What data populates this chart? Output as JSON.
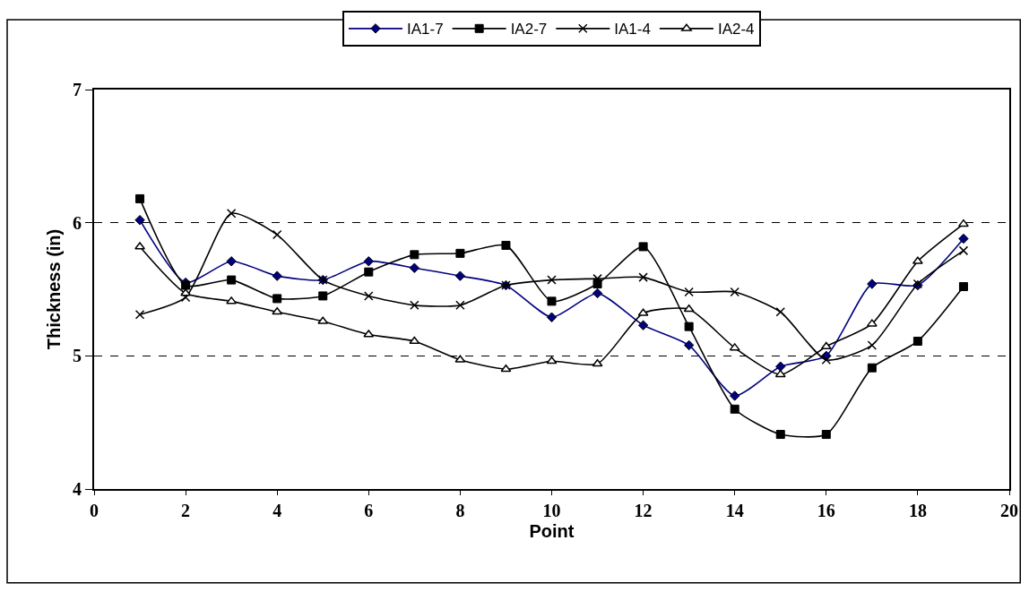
{
  "chart_data": {
    "type": "line",
    "xlabel": "Point",
    "ylabel": "Thickness (in)",
    "x": [
      1,
      2,
      3,
      4,
      5,
      6,
      7,
      8,
      9,
      10,
      11,
      12,
      13,
      14,
      15,
      16,
      17,
      18,
      19
    ],
    "series": [
      {
        "name": "IA1-7",
        "color": "#000080",
        "marker": "diamond",
        "values": [
          6.02,
          5.55,
          5.71,
          5.6,
          5.57,
          5.71,
          5.66,
          5.6,
          5.53,
          5.29,
          5.47,
          5.23,
          5.08,
          4.7,
          4.92,
          5.0,
          5.54,
          5.53,
          5.88
        ]
      },
      {
        "name": "IA2-7",
        "color": "#000000",
        "marker": "square",
        "values": [
          6.18,
          5.53,
          5.57,
          5.43,
          5.45,
          5.63,
          5.76,
          5.77,
          5.83,
          5.41,
          5.54,
          5.82,
          5.22,
          4.6,
          4.41,
          4.41,
          4.91,
          5.11,
          5.52
        ]
      },
      {
        "name": "IA1-4",
        "color": "#000000",
        "marker": "cross",
        "values": [
          5.31,
          5.44,
          6.07,
          5.91,
          5.57,
          5.45,
          5.38,
          5.38,
          5.53,
          5.57,
          5.58,
          5.59,
          5.48,
          5.48,
          5.33,
          4.97,
          5.08,
          5.54,
          5.79
        ]
      },
      {
        "name": "IA2-4",
        "color": "#000000",
        "marker": "triangle",
        "values": [
          5.82,
          5.47,
          5.41,
          5.33,
          5.26,
          5.16,
          5.11,
          4.97,
          4.9,
          4.96,
          4.94,
          5.32,
          5.35,
          5.06,
          4.86,
          5.07,
          5.24,
          5.71,
          5.99
        ]
      }
    ],
    "xlim": [
      0,
      20
    ],
    "xticks": [
      0,
      2,
      4,
      6,
      8,
      10,
      12,
      14,
      16,
      18,
      20
    ],
    "ylim": [
      4,
      7
    ],
    "yticks": [
      4,
      5,
      6,
      7
    ],
    "grid": "y",
    "line_style": "solid",
    "legend": "top"
  }
}
